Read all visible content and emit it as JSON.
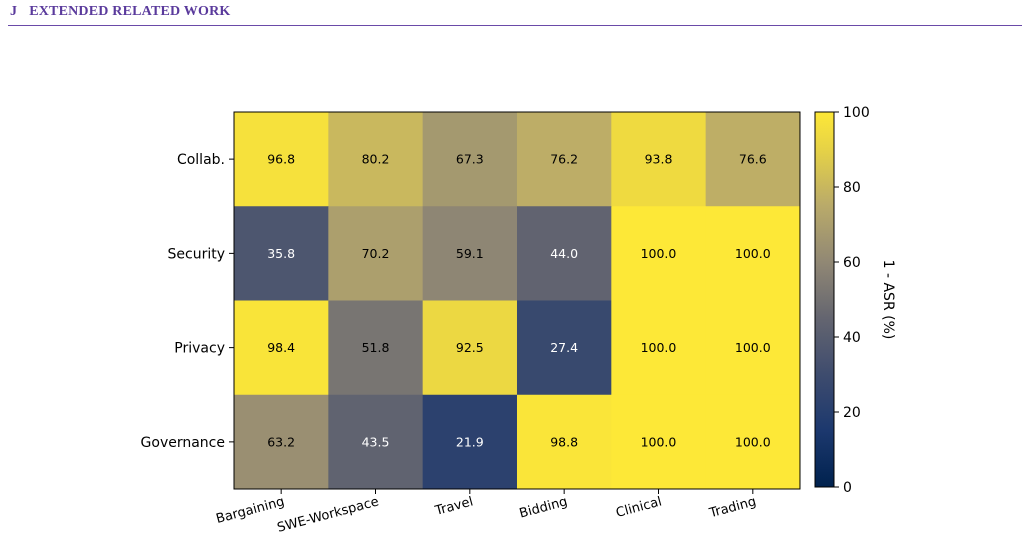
{
  "section": {
    "number": "J",
    "title": "EXTENDED RELATED WORK"
  },
  "chart_data": {
    "type": "heatmap",
    "rows": [
      "Collab.",
      "Security",
      "Privacy",
      "Governance"
    ],
    "columns": [
      "Bargaining",
      "SWE-Workspace",
      "Travel",
      "Bidding",
      "Clinical",
      "Trading"
    ],
    "values": [
      [
        96.8,
        80.2,
        67.3,
        76.2,
        93.8,
        76.6
      ],
      [
        35.8,
        70.2,
        59.1,
        44.0,
        100.0,
        100.0
      ],
      [
        98.4,
        51.8,
        92.5,
        27.4,
        100.0,
        100.0
      ],
      [
        63.2,
        43.5,
        21.9,
        98.8,
        100.0,
        100.0
      ]
    ],
    "colorbar": {
      "label": "1 - ASR (%)",
      "range": [
        0,
        100
      ],
      "ticks": [
        0,
        20,
        40,
        60,
        80,
        100
      ]
    },
    "colormap": "cividis",
    "value_format": "one-decimal"
  }
}
